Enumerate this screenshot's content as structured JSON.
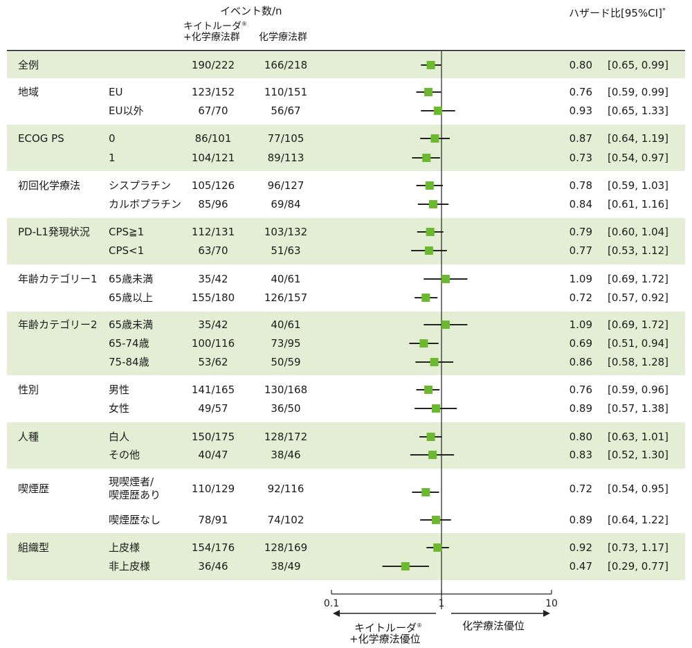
{
  "header": {
    "events_title": "イベント数/n",
    "pembro_line1": "キイトルーダ",
    "pembro_reg": "®",
    "pembro_line2": "+化学療法群",
    "chemo_col": "化学療法群",
    "hr_title": "ハザード比[95%CI]",
    "hr_note": "*"
  },
  "axis": {
    "scale": "log",
    "ticks": [
      {
        "value": 0.1,
        "label": "0.1"
      },
      {
        "value": 1,
        "label": "1"
      },
      {
        "value": 10,
        "label": "10"
      }
    ],
    "left_favors_line1": "キイトルーダ",
    "left_favors_reg": "®",
    "left_favors_line2": "+化学療法優位",
    "right_favors": "化学療法優位"
  },
  "colors": {
    "marker": "#6ab92e",
    "band": "#e4eed5",
    "line": "#222222"
  },
  "chart_data": {
    "type": "forest",
    "title": "ハザード比[95%CI]",
    "xscale": "log",
    "xlim": [
      0.1,
      10
    ],
    "reference_line": 1,
    "rows": [
      {
        "group": "全例",
        "subgroup": "",
        "pembro": "190/222",
        "chemo": "166/218",
        "hr": 0.8,
        "lo": 0.65,
        "hi": 0.99,
        "hr_text": "0.80",
        "ci_text": "[0.65, 0.99]"
      },
      {
        "group": "地域",
        "subgroup": "EU",
        "pembro": "123/152",
        "chemo": "110/151",
        "hr": 0.76,
        "lo": 0.59,
        "hi": 0.99,
        "hr_text": "0.76",
        "ci_text": "[0.59, 0.99]"
      },
      {
        "group": "",
        "subgroup": "EU以外",
        "pembro": "67/70",
        "chemo": "56/67",
        "hr": 0.93,
        "lo": 0.65,
        "hi": 1.33,
        "hr_text": "0.93",
        "ci_text": "[0.65, 1.33]"
      },
      {
        "group": "ECOG PS",
        "subgroup": "0",
        "pembro": "86/101",
        "chemo": "77/105",
        "hr": 0.87,
        "lo": 0.64,
        "hi": 1.19,
        "hr_text": "0.87",
        "ci_text": "[0.64, 1.19]"
      },
      {
        "group": "",
        "subgroup": "1",
        "pembro": "104/121",
        "chemo": "89/113",
        "hr": 0.73,
        "lo": 0.54,
        "hi": 0.97,
        "hr_text": "0.73",
        "ci_text": "[0.54, 0.97]"
      },
      {
        "group": "初回化学療法",
        "subgroup": "シスプラチン",
        "pembro": "105/126",
        "chemo": "96/127",
        "hr": 0.78,
        "lo": 0.59,
        "hi": 1.03,
        "hr_text": "0.78",
        "ci_text": "[0.59, 1.03]"
      },
      {
        "group": "",
        "subgroup": "カルボプラチン",
        "pembro": "85/96",
        "chemo": "69/84",
        "hr": 0.84,
        "lo": 0.61,
        "hi": 1.16,
        "hr_text": "0.84",
        "ci_text": "[0.61, 1.16]"
      },
      {
        "group": "PD-L1発現状況",
        "subgroup": "CPS≧1",
        "pembro": "112/131",
        "chemo": "103/132",
        "hr": 0.79,
        "lo": 0.6,
        "hi": 1.04,
        "hr_text": "0.79",
        "ci_text": "[0.60, 1.04]"
      },
      {
        "group": "",
        "subgroup": "CPS<1",
        "pembro": "63/70",
        "chemo": "51/63",
        "hr": 0.77,
        "lo": 0.53,
        "hi": 1.12,
        "hr_text": "0.77",
        "ci_text": "[0.53, 1.12]"
      },
      {
        "group": "年齢カテゴリー1",
        "subgroup": "65歳未満",
        "pembro": "35/42",
        "chemo": "40/61",
        "hr": 1.09,
        "lo": 0.69,
        "hi": 1.72,
        "hr_text": "1.09",
        "ci_text": "[0.69, 1.72]"
      },
      {
        "group": "",
        "subgroup": "65歳以上",
        "pembro": "155/180",
        "chemo": "126/157",
        "hr": 0.72,
        "lo": 0.57,
        "hi": 0.92,
        "hr_text": "0.72",
        "ci_text": "[0.57, 0.92]"
      },
      {
        "group": "年齢カテゴリー2",
        "subgroup": "65歳未満",
        "pembro": "35/42",
        "chemo": "40/61",
        "hr": 1.09,
        "lo": 0.69,
        "hi": 1.72,
        "hr_text": "1.09",
        "ci_text": "[0.69, 1.72]"
      },
      {
        "group": "",
        "subgroup": "65-74歳",
        "pembro": "100/116",
        "chemo": "73/95",
        "hr": 0.69,
        "lo": 0.51,
        "hi": 0.94,
        "hr_text": "0.69",
        "ci_text": "[0.51, 0.94]"
      },
      {
        "group": "",
        "subgroup": "75-84歳",
        "pembro": "53/62",
        "chemo": "50/59",
        "hr": 0.86,
        "lo": 0.58,
        "hi": 1.28,
        "hr_text": "0.86",
        "ci_text": "[0.58, 1.28]"
      },
      {
        "group": "性別",
        "subgroup": "男性",
        "pembro": "141/165",
        "chemo": "130/168",
        "hr": 0.76,
        "lo": 0.59,
        "hi": 0.96,
        "hr_text": "0.76",
        "ci_text": "[0.59, 0.96]"
      },
      {
        "group": "",
        "subgroup": "女性",
        "pembro": "49/57",
        "chemo": "36/50",
        "hr": 0.89,
        "lo": 0.57,
        "hi": 1.38,
        "hr_text": "0.89",
        "ci_text": "[0.57, 1.38]"
      },
      {
        "group": "人種",
        "subgroup": "白人",
        "pembro": "150/175",
        "chemo": "128/172",
        "hr": 0.8,
        "lo": 0.63,
        "hi": 1.01,
        "hr_text": "0.80",
        "ci_text": "[0.63, 1.01]"
      },
      {
        "group": "",
        "subgroup": "その他",
        "pembro": "40/47",
        "chemo": "38/46",
        "hr": 0.83,
        "lo": 0.52,
        "hi": 1.3,
        "hr_text": "0.83",
        "ci_text": "[0.52, 1.30]"
      },
      {
        "group": "喫煙歴",
        "subgroup": "現喫煙者/",
        "subgroup2": "喫煙歴あり",
        "pembro": "110/129",
        "chemo": "92/116",
        "hr": 0.72,
        "lo": 0.54,
        "hi": 0.95,
        "hr_text": "0.72",
        "ci_text": "[0.54, 0.95]"
      },
      {
        "group": "",
        "subgroup": "喫煙歴なし",
        "pembro": "78/91",
        "chemo": "74/102",
        "hr": 0.89,
        "lo": 0.64,
        "hi": 1.22,
        "hr_text": "0.89",
        "ci_text": "[0.64, 1.22]"
      },
      {
        "group": "組織型",
        "subgroup": "上皮様",
        "pembro": "154/176",
        "chemo": "128/169",
        "hr": 0.92,
        "lo": 0.73,
        "hi": 1.17,
        "hr_text": "0.92",
        "ci_text": "[0.73, 1.17]"
      },
      {
        "group": "",
        "subgroup": "非上皮様",
        "pembro": "36/46",
        "chemo": "38/49",
        "hr": 0.47,
        "lo": 0.29,
        "hi": 0.77,
        "hr_text": "0.47",
        "ci_text": "[0.29, 0.77]"
      }
    ]
  }
}
